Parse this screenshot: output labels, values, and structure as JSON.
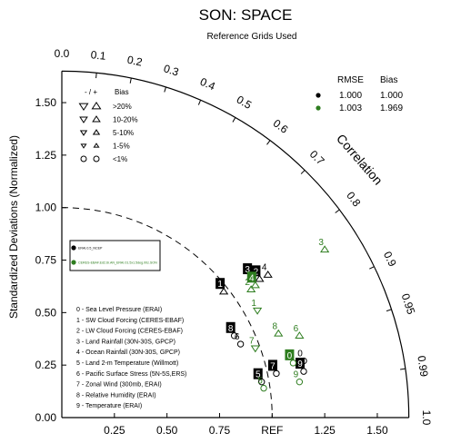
{
  "chart_data": {
    "type": "scatter",
    "title": "SON: SPACE",
    "subtitle": "Reference Grids Used",
    "ylabel": "Standardized Deviations (Normalized)",
    "arc_label": "Correlation",
    "ref_label": "REF",
    "xlim": [
      0,
      1.65
    ],
    "ylim": [
      0,
      1.65
    ],
    "x_ticks": [
      {
        "v": 0.25,
        "label": "0.25"
      },
      {
        "v": 0.5,
        "label": "0.50"
      },
      {
        "v": 0.75,
        "label": "0.75"
      },
      {
        "v": 1.25,
        "label": "1.25"
      },
      {
        "v": 1.5,
        "label": "1.50"
      }
    ],
    "y_ticks": [
      {
        "v": 0,
        "label": "0.00"
      },
      {
        "v": 0.25,
        "label": "0.25"
      },
      {
        "v": 0.5,
        "label": "0.50"
      },
      {
        "v": 0.75,
        "label": "0.75"
      },
      {
        "v": 1.0,
        "label": "1.00"
      },
      {
        "v": 1.25,
        "label": "1.25"
      },
      {
        "v": 1.5,
        "label": "1.50"
      }
    ],
    "corr_ticks": [
      {
        "r": 0.0,
        "label": "0.0"
      },
      {
        "r": 0.1,
        "label": "0.1"
      },
      {
        "r": 0.2,
        "label": "0.2"
      },
      {
        "r": 0.3,
        "label": "0.3"
      },
      {
        "r": 0.4,
        "label": "0.4"
      },
      {
        "r": 0.5,
        "label": "0.5"
      },
      {
        "r": 0.6,
        "label": "0.6"
      },
      {
        "r": 0.7,
        "label": "0.7"
      },
      {
        "r": 0.8,
        "label": "0.8"
      },
      {
        "r": 0.9,
        "label": "0.9"
      },
      {
        "r": 0.95,
        "label": "0.95"
      },
      {
        "r": 0.99,
        "label": "0.99"
      },
      {
        "r": 1.0,
        "label": "1.0"
      }
    ],
    "ref_arc": 1.0,
    "outer_radius": 1.65,
    "series_colors": [
      "#000000",
      "#2e7d1f"
    ],
    "case_legend": {
      "headers": [
        "RMSE",
        "Bias"
      ],
      "rows": [
        {
          "color": "#000000",
          "rmse": "1.000",
          "bias": "1.000"
        },
        {
          "color": "#2e7d1f",
          "rmse": "1.003",
          "bias": "1.969"
        }
      ]
    },
    "bias_legend": {
      "header_sign": "- / +",
      "header_bias": "Bias",
      "rows": [
        {
          "label": ">20%",
          "size": 7
        },
        {
          "label": "10-20%",
          "size": 6
        },
        {
          "label": "5-10%",
          "size": 5
        },
        {
          "label": "1-5%",
          "size": 4
        },
        {
          "label": "<1%",
          "size": 0
        }
      ]
    },
    "case_box_labels": [
      "ERAI.0.5_NCEP",
      "CERES-EBAF.Ed2.6r.AN_ERAI.01.5x1.5deg.00z.SON"
    ],
    "variables": [
      "0 - Sea Level Pressure (ERAI)",
      "1 - SW Cloud Forcing (CERES-EBAF)",
      "2 - LW Cloud Forcing (CERES-EBAF)",
      "3 - Land Rainfall (30N-30S, GPCP)",
      "4 - Ocean Rainfall (30N-30S, GPCP)",
      "5 - Land 2-m Temperature (Willmott)",
      "6 - Pacific Surface Stress (5N-5S,ERS)",
      "7 - Zonal Wind (300mb, ERAI)",
      "8 - Relative Humidity (ERAI)",
      "9 - Temperature (ERAI)"
    ],
    "series": [
      {
        "color": "#000000",
        "points": [
          {
            "id": "0",
            "x": 1.15,
            "y": 0.27,
            "marker": "circle",
            "box": false
          },
          {
            "id": "1",
            "x": 0.77,
            "y": 0.6,
            "marker": "tri-up",
            "box": true
          },
          {
            "id": "2",
            "x": 0.94,
            "y": 0.66,
            "marker": "tri-up",
            "box": true
          },
          {
            "id": "3",
            "x": 0.9,
            "y": 0.67,
            "marker": "tri-up",
            "box": true
          },
          {
            "id": "4",
            "x": 0.98,
            "y": 0.68,
            "marker": "tri-up",
            "box": false
          },
          {
            "id": "5",
            "x": 0.95,
            "y": 0.17,
            "marker": "circle",
            "box": true
          },
          {
            "id": "6",
            "x": 0.85,
            "y": 0.35,
            "marker": "circle",
            "box": false
          },
          {
            "id": "7",
            "x": 1.02,
            "y": 0.21,
            "marker": "circle",
            "box": true
          },
          {
            "id": "8",
            "x": 0.82,
            "y": 0.39,
            "marker": "circle",
            "box": true
          },
          {
            "id": "9",
            "x": 1.15,
            "y": 0.22,
            "marker": "circle",
            "box": true
          }
        ]
      },
      {
        "color": "#2e7d1f",
        "points": [
          {
            "id": "0",
            "x": 1.1,
            "y": 0.26,
            "marker": "circle",
            "box": true
          },
          {
            "id": "1",
            "x": 0.93,
            "y": 0.51,
            "marker": "tri-down",
            "box": false
          },
          {
            "id": "2",
            "x": 0.9,
            "y": 0.61,
            "marker": "tri-up",
            "box": false
          },
          {
            "id": "3",
            "x": 1.25,
            "y": 0.8,
            "marker": "tri-up",
            "box": false
          },
          {
            "id": "4",
            "x": 0.92,
            "y": 0.63,
            "marker": "tri-up",
            "box": true
          },
          {
            "id": "5",
            "x": 0.96,
            "y": 0.14,
            "marker": "circle",
            "box": false
          },
          {
            "id": "6",
            "x": 1.13,
            "y": 0.39,
            "marker": "tri-up",
            "box": false
          },
          {
            "id": "7",
            "x": 0.92,
            "y": 0.33,
            "marker": "tri-down",
            "box": false
          },
          {
            "id": "8",
            "x": 1.03,
            "y": 0.4,
            "marker": "tri-up",
            "box": false
          },
          {
            "id": "9",
            "x": 1.13,
            "y": 0.17,
            "marker": "circle",
            "box": false
          }
        ]
      }
    ]
  }
}
